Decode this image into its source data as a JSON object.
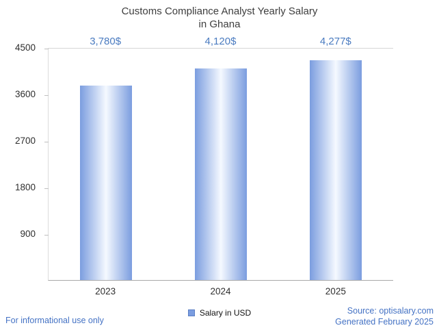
{
  "title": {
    "line1": "Customs Compliance Analyst Yearly Salary",
    "line2": "in Ghana"
  },
  "chart_data": {
    "type": "bar",
    "title": "Customs Compliance Analyst Yearly Salary in Ghana",
    "categories": [
      "2023",
      "2024",
      "2025"
    ],
    "values": [
      3780,
      4120,
      4277
    ],
    "value_labels": [
      "3,780$",
      "4,120$",
      "4,277$"
    ],
    "series_name": "Salary in USD",
    "xlabel": "",
    "ylabel": "",
    "ylim": [
      0,
      4500
    ],
    "yticks": [
      900,
      1800,
      2700,
      3600,
      4500
    ],
    "grid": "top-line-only",
    "legend_position": "bottom",
    "colors": {
      "bar_edge": "#7b9ddf",
      "bar_center": "#f5f9ff",
      "value_label": "#4a7bc0",
      "footer_link": "#4472c4",
      "title_text": "#3d3d3d",
      "axis_line": "#a8a8a8"
    }
  },
  "legend": {
    "salary_label": "Salary in USD",
    "swatch_color": "#7b9de0"
  },
  "footer": {
    "left": "For informational use only",
    "source": "Source: optisalary.com",
    "generated": "Generated February 2025"
  }
}
